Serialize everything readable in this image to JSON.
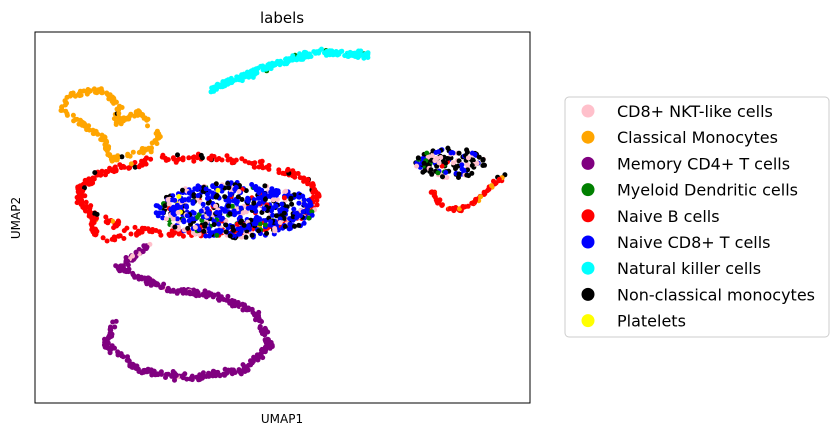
{
  "chart_data": {
    "type": "scatter",
    "title": "labels",
    "xlabel": "UMAP1",
    "ylabel": "UMAP2",
    "ticks": "none",
    "grid": false,
    "legend_position": "right",
    "series": [
      {
        "name": "CD8+ NKT-like cells",
        "color": "#ffc0cb"
      },
      {
        "name": "Classical Monocytes",
        "color": "#ffa500"
      },
      {
        "name": "Memory CD4+ T cells",
        "color": "#800080"
      },
      {
        "name": "Myeloid Dendritic cells",
        "color": "#008000"
      },
      {
        "name": "Naive B cells",
        "color": "#ff0000"
      },
      {
        "name": "Naive CD8+ T cells",
        "color": "#0000ff"
      },
      {
        "name": "Natural killer  cells",
        "color": "#00ffff"
      },
      {
        "name": "Non-classical monocytes",
        "color": "#000000"
      },
      {
        "name": "Platelets",
        "color": "#ffff00"
      }
    ]
  }
}
